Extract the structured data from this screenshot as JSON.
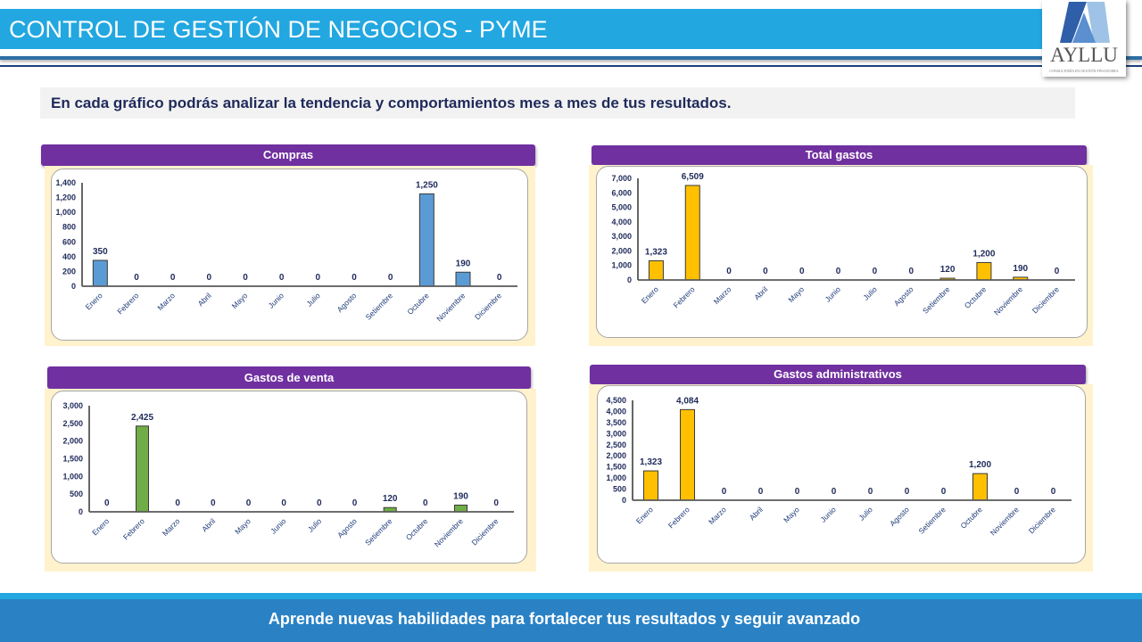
{
  "header": {
    "title": "CONTROL DE GESTIÓN DE NEGOCIOS - PYME",
    "logo": {
      "name": "AYLLU",
      "tagline": "CONSULTORÍA EN GESTIÓN FINANCIERA"
    }
  },
  "intro": {
    "text": "En cada gráfico podrás analizar la tendencia y comportamientos mes a mes de tus resultados."
  },
  "footer": {
    "text": "Aprende nuevas habilidades para fortalecer tus resultados y seguir avanzado"
  },
  "colors": {
    "header_blue": "#22a7e0",
    "footer_blue": "#2a82c5",
    "title_purple": "#7030a0",
    "panel_cream": "#fff2cc",
    "bar_blue": "#5b9bd5",
    "bar_gold": "#ffc000",
    "bar_green": "#70ad47"
  },
  "chart_data": [
    {
      "id": "compras",
      "type": "bar",
      "title": "Compras",
      "categories": [
        "Enero",
        "Febrero",
        "Marzo",
        "Abril",
        "Mayo",
        "Junio",
        "Julio",
        "Agosto",
        "Setiembre",
        "Octubre",
        "Noviembre",
        "Diciembre"
      ],
      "values": [
        350,
        0,
        0,
        0,
        0,
        0,
        0,
        0,
        0,
        1250,
        190,
        0
      ],
      "value_labels": [
        "350",
        "0",
        "0",
        "0",
        "0",
        "0",
        "0",
        "0",
        "0",
        "1,250",
        "190",
        "0"
      ],
      "yticks": [
        0,
        200,
        400,
        600,
        800,
        1000,
        1200,
        1400
      ],
      "ytick_labels": [
        "0",
        "200",
        "400",
        "600",
        "800",
        "1,000",
        "1,200",
        "1,400"
      ],
      "ylim": [
        0,
        1400
      ],
      "color": "#5b9bd5",
      "xlabel": "",
      "ylabel": "",
      "grid": false,
      "legend": "none"
    },
    {
      "id": "total-gastos",
      "type": "bar",
      "title": "Total gastos",
      "categories": [
        "Enero",
        "Febrero",
        "Marzo",
        "Abril",
        "Mayo",
        "Junio",
        "Julio",
        "Agosto",
        "Setiembre",
        "Octubre",
        "Noviembre",
        "Diciembre"
      ],
      "values": [
        1323,
        6509,
        0,
        0,
        0,
        0,
        0,
        0,
        120,
        1200,
        190,
        0
      ],
      "value_labels": [
        "1,323",
        "6,509",
        "0",
        "0",
        "0",
        "0",
        "0",
        "0",
        "120",
        "1,200",
        "190",
        "0"
      ],
      "yticks": [
        0,
        1000,
        2000,
        3000,
        4000,
        5000,
        6000,
        7000
      ],
      "ytick_labels": [
        "0",
        "1,000",
        "2,000",
        "3,000",
        "4,000",
        "5,000",
        "6,000",
        "7,000"
      ],
      "ylim": [
        0,
        7000
      ],
      "color": "#ffc000",
      "xlabel": "",
      "ylabel": "",
      "grid": false,
      "legend": "none"
    },
    {
      "id": "gastos-venta",
      "type": "bar",
      "title": "Gastos de venta",
      "categories": [
        "Enero",
        "Febrero",
        "Marzo",
        "Abril",
        "Mayo",
        "Junio",
        "Julio",
        "Agosto",
        "Setiembre",
        "Octubre",
        "Noviembre",
        "Diciembre"
      ],
      "values": [
        0,
        2425,
        0,
        0,
        0,
        0,
        0,
        0,
        120,
        0,
        190,
        0
      ],
      "value_labels": [
        "0",
        "2,425",
        "0",
        "0",
        "0",
        "0",
        "0",
        "0",
        "120",
        "0",
        "190",
        "0"
      ],
      "yticks": [
        0,
        500,
        1000,
        1500,
        2000,
        2500,
        3000
      ],
      "ytick_labels": [
        "0",
        "500",
        "1,000",
        "1,500",
        "2,000",
        "2,500",
        "3,000"
      ],
      "ylim": [
        0,
        3000
      ],
      "color": "#70ad47",
      "xlabel": "",
      "ylabel": "",
      "grid": false,
      "legend": "none"
    },
    {
      "id": "gastos-administrativos",
      "type": "bar",
      "title": "Gastos administrativos",
      "categories": [
        "Enero",
        "Febrero",
        "Marzo",
        "Abril",
        "Mayo",
        "Junio",
        "Julio",
        "Agosto",
        "Setiembre",
        "Octubre",
        "Noviembre",
        "Diciembre"
      ],
      "values": [
        1323,
        4084,
        0,
        0,
        0,
        0,
        0,
        0,
        0,
        1200,
        0,
        0
      ],
      "value_labels": [
        "1,323",
        "4,084",
        "0",
        "0",
        "0",
        "0",
        "0",
        "0",
        "0",
        "1,200",
        "0",
        "0"
      ],
      "yticks": [
        0,
        500,
        1000,
        1500,
        2000,
        2500,
        3000,
        3500,
        4000,
        4500
      ],
      "ytick_labels": [
        "0",
        "500",
        "1,000",
        "1,500",
        "2,000",
        "2,500",
        "3,000",
        "3,500",
        "4,000",
        "4,500"
      ],
      "ylim": [
        0,
        4500
      ],
      "color": "#ffc000",
      "xlabel": "",
      "ylabel": "",
      "grid": false,
      "legend": "none"
    }
  ]
}
